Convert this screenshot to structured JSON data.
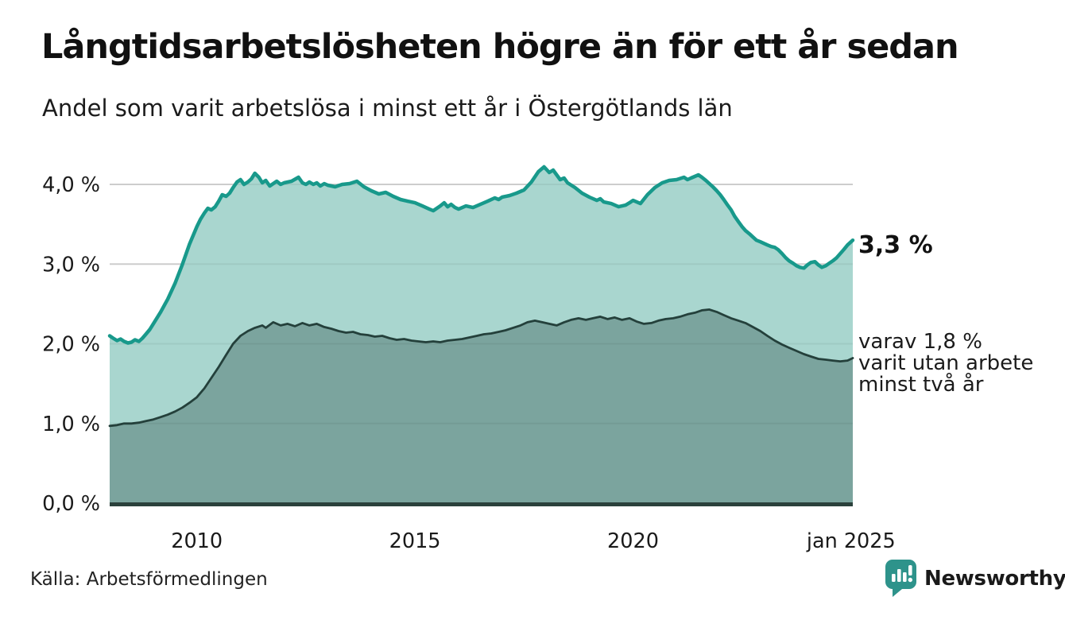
{
  "header": {
    "title": "Långtidsarbetslösheten högre än för ett år sedan",
    "subtitle": "Andel som varit arbetslösa i minst ett år i Östergötlands län"
  },
  "annotations": {
    "end_value": "3,3 %",
    "secondary_lines": [
      "varav 1,8 %",
      "varit utan arbete",
      "minst två år"
    ]
  },
  "footer": {
    "source": "Källa: Arbetsförmedlingen"
  },
  "branding": {
    "name": "Newsworthy",
    "color": "#2E938B",
    "icon": "newsworthy-bubble-barchart-icon"
  },
  "colors": {
    "grid": "#D9D9D9",
    "grid_overlay": "rgba(0,0,0,0.055)",
    "axis": "#2B413C",
    "text": "#1A1A1A"
  },
  "chart_data": {
    "type": "area",
    "title": "Långtidsarbetslösheten högre än för ett år sedan",
    "subtitle": "Andel som varit arbetslösa i minst ett år i Östergötlands län",
    "unit": "%",
    "grid": true,
    "legend": "none",
    "x_domain": [
      2008.0,
      2025.04
    ],
    "ylim": [
      0,
      4.35
    ],
    "y_ticks": [
      {
        "value": 0,
        "label": "0,0 %"
      },
      {
        "value": 1,
        "label": "1,0 %"
      },
      {
        "value": 2,
        "label": "2,0 %"
      },
      {
        "value": 3,
        "label": "3,0 %"
      },
      {
        "value": 4,
        "label": "4,0 %"
      }
    ],
    "x_ticks": [
      {
        "value": 2010,
        "label": "2010"
      },
      {
        "value": 2015,
        "label": "2015"
      },
      {
        "value": 2020,
        "label": "2020"
      },
      {
        "value": 2025.0,
        "label": "jan 2025"
      }
    ],
    "series": [
      {
        "name": "Andel arbetslösa minst ett år",
        "end_label": "3,3 %",
        "line_color": "#18998B",
        "fill_color": "#A9D6CF",
        "line_width": 4.5,
        "points": [
          [
            2008.0,
            2.1
          ],
          [
            2008.08,
            2.07
          ],
          [
            2008.17,
            2.04
          ],
          [
            2008.25,
            2.06
          ],
          [
            2008.33,
            2.03
          ],
          [
            2008.42,
            2.01
          ],
          [
            2008.5,
            2.02
          ],
          [
            2008.58,
            2.05
          ],
          [
            2008.67,
            2.03
          ],
          [
            2008.75,
            2.07
          ],
          [
            2008.83,
            2.12
          ],
          [
            2008.92,
            2.18
          ],
          [
            2009.0,
            2.25
          ],
          [
            2009.17,
            2.4
          ],
          [
            2009.33,
            2.56
          ],
          [
            2009.5,
            2.76
          ],
          [
            2009.67,
            3.0
          ],
          [
            2009.83,
            3.25
          ],
          [
            2010.0,
            3.47
          ],
          [
            2010.08,
            3.56
          ],
          [
            2010.17,
            3.64
          ],
          [
            2010.25,
            3.7
          ],
          [
            2010.33,
            3.68
          ],
          [
            2010.42,
            3.72
          ],
          [
            2010.5,
            3.79
          ],
          [
            2010.58,
            3.87
          ],
          [
            2010.67,
            3.85
          ],
          [
            2010.75,
            3.89
          ],
          [
            2010.83,
            3.96
          ],
          [
            2010.92,
            4.03
          ],
          [
            2011.0,
            4.06
          ],
          [
            2011.08,
            4.0
          ],
          [
            2011.17,
            4.03
          ],
          [
            2011.25,
            4.07
          ],
          [
            2011.33,
            4.14
          ],
          [
            2011.42,
            4.09
          ],
          [
            2011.5,
            4.02
          ],
          [
            2011.58,
            4.05
          ],
          [
            2011.67,
            3.98
          ],
          [
            2011.75,
            4.01
          ],
          [
            2011.83,
            4.04
          ],
          [
            2011.92,
            4.0
          ],
          [
            2012.0,
            4.02
          ],
          [
            2012.17,
            4.04
          ],
          [
            2012.33,
            4.09
          ],
          [
            2012.42,
            4.02
          ],
          [
            2012.5,
            4.0
          ],
          [
            2012.58,
            4.03
          ],
          [
            2012.67,
            4.0
          ],
          [
            2012.75,
            4.02
          ],
          [
            2012.83,
            3.98
          ],
          [
            2012.92,
            4.01
          ],
          [
            2013.0,
            3.99
          ],
          [
            2013.17,
            3.97
          ],
          [
            2013.33,
            4.0
          ],
          [
            2013.5,
            4.01
          ],
          [
            2013.67,
            4.04
          ],
          [
            2013.83,
            3.97
          ],
          [
            2014.0,
            3.92
          ],
          [
            2014.17,
            3.88
          ],
          [
            2014.33,
            3.9
          ],
          [
            2014.5,
            3.85
          ],
          [
            2014.67,
            3.81
          ],
          [
            2014.83,
            3.79
          ],
          [
            2015.0,
            3.77
          ],
          [
            2015.17,
            3.73
          ],
          [
            2015.33,
            3.69
          ],
          [
            2015.42,
            3.67
          ],
          [
            2015.58,
            3.73
          ],
          [
            2015.67,
            3.77
          ],
          [
            2015.75,
            3.72
          ],
          [
            2015.83,
            3.75
          ],
          [
            2015.92,
            3.71
          ],
          [
            2016.0,
            3.69
          ],
          [
            2016.17,
            3.73
          ],
          [
            2016.33,
            3.71
          ],
          [
            2016.5,
            3.75
          ],
          [
            2016.67,
            3.79
          ],
          [
            2016.83,
            3.83
          ],
          [
            2016.92,
            3.81
          ],
          [
            2017.0,
            3.84
          ],
          [
            2017.17,
            3.86
          ],
          [
            2017.33,
            3.89
          ],
          [
            2017.5,
            3.93
          ],
          [
            2017.67,
            4.03
          ],
          [
            2017.83,
            4.16
          ],
          [
            2017.96,
            4.22
          ],
          [
            2018.08,
            4.15
          ],
          [
            2018.17,
            4.18
          ],
          [
            2018.25,
            4.12
          ],
          [
            2018.33,
            4.06
          ],
          [
            2018.42,
            4.08
          ],
          [
            2018.5,
            4.02
          ],
          [
            2018.67,
            3.96
          ],
          [
            2018.83,
            3.89
          ],
          [
            2019.0,
            3.84
          ],
          [
            2019.17,
            3.8
          ],
          [
            2019.25,
            3.82
          ],
          [
            2019.33,
            3.78
          ],
          [
            2019.5,
            3.76
          ],
          [
            2019.67,
            3.72
          ],
          [
            2019.83,
            3.74
          ],
          [
            2019.92,
            3.77
          ],
          [
            2020.0,
            3.8
          ],
          [
            2020.17,
            3.76
          ],
          [
            2020.33,
            3.87
          ],
          [
            2020.5,
            3.96
          ],
          [
            2020.67,
            4.02
          ],
          [
            2020.83,
            4.05
          ],
          [
            2021.0,
            4.06
          ],
          [
            2021.17,
            4.09
          ],
          [
            2021.25,
            4.06
          ],
          [
            2021.33,
            4.08
          ],
          [
            2021.5,
            4.12
          ],
          [
            2021.58,
            4.09
          ],
          [
            2021.67,
            4.05
          ],
          [
            2021.75,
            4.01
          ],
          [
            2021.83,
            3.97
          ],
          [
            2021.92,
            3.92
          ],
          [
            2022.0,
            3.87
          ],
          [
            2022.08,
            3.81
          ],
          [
            2022.17,
            3.74
          ],
          [
            2022.25,
            3.68
          ],
          [
            2022.33,
            3.6
          ],
          [
            2022.42,
            3.53
          ],
          [
            2022.5,
            3.47
          ],
          [
            2022.58,
            3.42
          ],
          [
            2022.67,
            3.38
          ],
          [
            2022.75,
            3.34
          ],
          [
            2022.83,
            3.3
          ],
          [
            2022.92,
            3.28
          ],
          [
            2023.0,
            3.26
          ],
          [
            2023.08,
            3.24
          ],
          [
            2023.17,
            3.22
          ],
          [
            2023.25,
            3.21
          ],
          [
            2023.33,
            3.18
          ],
          [
            2023.42,
            3.13
          ],
          [
            2023.5,
            3.08
          ],
          [
            2023.58,
            3.04
          ],
          [
            2023.67,
            3.01
          ],
          [
            2023.75,
            2.98
          ],
          [
            2023.83,
            2.96
          ],
          [
            2023.92,
            2.95
          ],
          [
            2024.0,
            2.99
          ],
          [
            2024.08,
            3.02
          ],
          [
            2024.17,
            3.03
          ],
          [
            2024.25,
            2.99
          ],
          [
            2024.33,
            2.96
          ],
          [
            2024.42,
            2.98
          ],
          [
            2024.5,
            3.01
          ],
          [
            2024.58,
            3.04
          ],
          [
            2024.67,
            3.08
          ],
          [
            2024.75,
            3.13
          ],
          [
            2024.83,
            3.18
          ],
          [
            2024.92,
            3.24
          ],
          [
            2025.04,
            3.3
          ]
        ]
      },
      {
        "name": "Andel arbetslösa minst två år",
        "end_label": "varav 1,8 % varit utan arbete minst två år",
        "line_color": "#24403B",
        "fill_color": "#7BA49E",
        "line_width": 2.8,
        "points": [
          [
            2008.0,
            0.97
          ],
          [
            2008.17,
            0.98
          ],
          [
            2008.33,
            1.0
          ],
          [
            2008.5,
            1.0
          ],
          [
            2008.67,
            1.01
          ],
          [
            2008.83,
            1.03
          ],
          [
            2009.0,
            1.05
          ],
          [
            2009.17,
            1.08
          ],
          [
            2009.33,
            1.11
          ],
          [
            2009.5,
            1.15
          ],
          [
            2009.67,
            1.2
          ],
          [
            2009.83,
            1.26
          ],
          [
            2010.0,
            1.33
          ],
          [
            2010.17,
            1.44
          ],
          [
            2010.33,
            1.57
          ],
          [
            2010.5,
            1.71
          ],
          [
            2010.67,
            1.86
          ],
          [
            2010.83,
            2.0
          ],
          [
            2011.0,
            2.1
          ],
          [
            2011.17,
            2.16
          ],
          [
            2011.33,
            2.2
          ],
          [
            2011.5,
            2.23
          ],
          [
            2011.58,
            2.2
          ],
          [
            2011.75,
            2.27
          ],
          [
            2011.92,
            2.23
          ],
          [
            2012.08,
            2.25
          ],
          [
            2012.25,
            2.22
          ],
          [
            2012.42,
            2.26
          ],
          [
            2012.58,
            2.23
          ],
          [
            2012.75,
            2.25
          ],
          [
            2012.92,
            2.21
          ],
          [
            2013.08,
            2.19
          ],
          [
            2013.25,
            2.16
          ],
          [
            2013.42,
            2.14
          ],
          [
            2013.58,
            2.15
          ],
          [
            2013.75,
            2.12
          ],
          [
            2013.92,
            2.11
          ],
          [
            2014.08,
            2.09
          ],
          [
            2014.25,
            2.1
          ],
          [
            2014.42,
            2.07
          ],
          [
            2014.58,
            2.05
          ],
          [
            2014.75,
            2.06
          ],
          [
            2014.92,
            2.04
          ],
          [
            2015.08,
            2.03
          ],
          [
            2015.25,
            2.02
          ],
          [
            2015.42,
            2.03
          ],
          [
            2015.58,
            2.02
          ],
          [
            2015.75,
            2.04
          ],
          [
            2015.92,
            2.05
          ],
          [
            2016.08,
            2.06
          ],
          [
            2016.25,
            2.08
          ],
          [
            2016.42,
            2.1
          ],
          [
            2016.58,
            2.12
          ],
          [
            2016.75,
            2.13
          ],
          [
            2016.92,
            2.15
          ],
          [
            2017.08,
            2.17
          ],
          [
            2017.25,
            2.2
          ],
          [
            2017.42,
            2.23
          ],
          [
            2017.58,
            2.27
          ],
          [
            2017.75,
            2.29
          ],
          [
            2017.92,
            2.27
          ],
          [
            2018.08,
            2.25
          ],
          [
            2018.25,
            2.23
          ],
          [
            2018.42,
            2.27
          ],
          [
            2018.58,
            2.3
          ],
          [
            2018.75,
            2.32
          ],
          [
            2018.92,
            2.3
          ],
          [
            2019.08,
            2.32
          ],
          [
            2019.25,
            2.34
          ],
          [
            2019.42,
            2.31
          ],
          [
            2019.58,
            2.33
          ],
          [
            2019.75,
            2.3
          ],
          [
            2019.92,
            2.32
          ],
          [
            2020.08,
            2.28
          ],
          [
            2020.25,
            2.25
          ],
          [
            2020.42,
            2.26
          ],
          [
            2020.58,
            2.29
          ],
          [
            2020.75,
            2.31
          ],
          [
            2020.92,
            2.32
          ],
          [
            2021.08,
            2.34
          ],
          [
            2021.25,
            2.37
          ],
          [
            2021.42,
            2.39
          ],
          [
            2021.58,
            2.42
          ],
          [
            2021.75,
            2.43
          ],
          [
            2021.92,
            2.4
          ],
          [
            2022.08,
            2.36
          ],
          [
            2022.25,
            2.32
          ],
          [
            2022.42,
            2.29
          ],
          [
            2022.58,
            2.26
          ],
          [
            2022.75,
            2.21
          ],
          [
            2022.92,
            2.16
          ],
          [
            2023.08,
            2.1
          ],
          [
            2023.25,
            2.04
          ],
          [
            2023.42,
            1.99
          ],
          [
            2023.58,
            1.95
          ],
          [
            2023.75,
            1.91
          ],
          [
            2023.92,
            1.87
          ],
          [
            2024.08,
            1.84
          ],
          [
            2024.25,
            1.81
          ],
          [
            2024.42,
            1.8
          ],
          [
            2024.58,
            1.79
          ],
          [
            2024.75,
            1.78
          ],
          [
            2024.92,
            1.79
          ],
          [
            2025.04,
            1.82
          ]
        ]
      }
    ]
  }
}
